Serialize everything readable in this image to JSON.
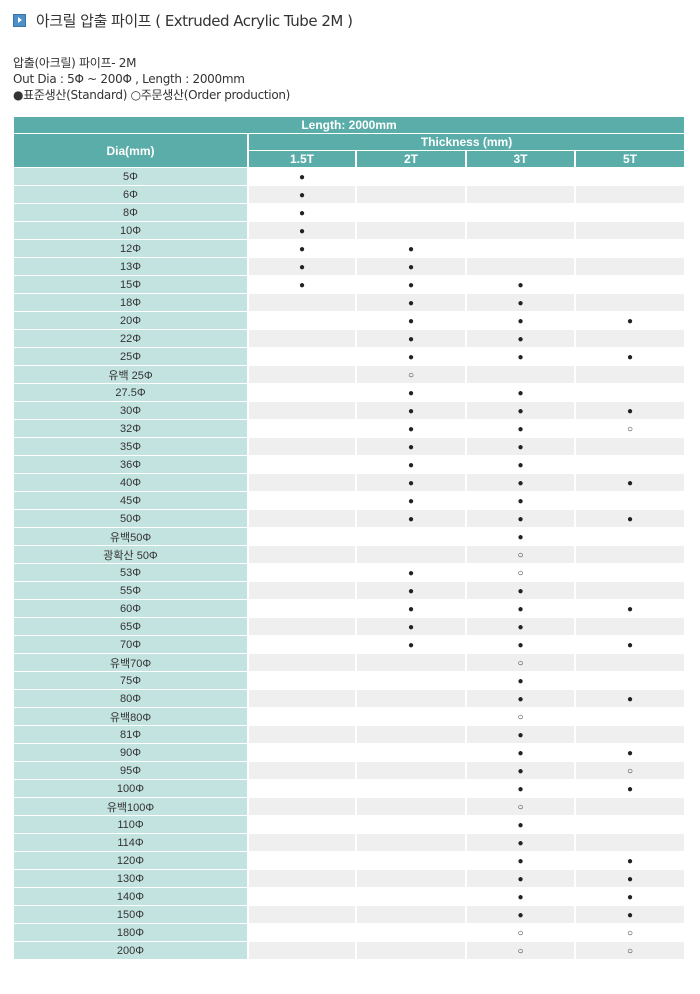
{
  "title": "아크릴 압출 파이프 ( Extruded Acrylic Tube 2M )",
  "desc": {
    "line1": "압출(아크릴) 파이프- 2M",
    "line2": "Out Dia : 5Φ ~ 200Φ , Length : 2000mm",
    "line3": "●표준생산(Standard) ○주문생산(Order production)"
  },
  "colors": {
    "header": "#5aada9",
    "dia_cell": "#c3e3e1",
    "row_alt": "#efefef"
  },
  "table": {
    "length_header": "Length: 2000mm",
    "dia_header": "Dia(mm)",
    "thickness_header": "Thickness (mm)",
    "columns": [
      "1.5T",
      "2T",
      "3T",
      "5T"
    ],
    "rows": [
      {
        "dia": "5Φ",
        "v": [
          "●",
          "",
          "",
          ""
        ]
      },
      {
        "dia": "6Φ",
        "v": [
          "●",
          "",
          "",
          ""
        ]
      },
      {
        "dia": "8Φ",
        "v": [
          "●",
          "",
          "",
          ""
        ]
      },
      {
        "dia": "10Φ",
        "v": [
          "●",
          "",
          "",
          ""
        ]
      },
      {
        "dia": "12Φ",
        "v": [
          "●",
          "●",
          "",
          ""
        ]
      },
      {
        "dia": "13Φ",
        "v": [
          "●",
          "●",
          "",
          ""
        ]
      },
      {
        "dia": "15Φ",
        "v": [
          "●",
          "●",
          "●",
          ""
        ]
      },
      {
        "dia": "18Φ",
        "v": [
          "",
          "●",
          "●",
          ""
        ]
      },
      {
        "dia": "20Φ",
        "v": [
          "",
          "●",
          "●",
          "●"
        ]
      },
      {
        "dia": "22Φ",
        "v": [
          "",
          "●",
          "●",
          ""
        ]
      },
      {
        "dia": "25Φ",
        "v": [
          "",
          "●",
          "●",
          "●"
        ]
      },
      {
        "dia": "유백 25Φ",
        "v": [
          "",
          "○",
          "",
          ""
        ]
      },
      {
        "dia": "27.5Φ",
        "v": [
          "",
          "●",
          "●",
          ""
        ]
      },
      {
        "dia": "30Φ",
        "v": [
          "",
          "●",
          "●",
          "●"
        ]
      },
      {
        "dia": "32Φ",
        "v": [
          "",
          "●",
          "●",
          "○"
        ]
      },
      {
        "dia": "35Φ",
        "v": [
          "",
          "●",
          "●",
          ""
        ]
      },
      {
        "dia": "36Φ",
        "v": [
          "",
          "●",
          "●",
          ""
        ]
      },
      {
        "dia": "40Φ",
        "v": [
          "",
          "●",
          "●",
          "●"
        ]
      },
      {
        "dia": "45Φ",
        "v": [
          "",
          "●",
          "●",
          ""
        ]
      },
      {
        "dia": "50Φ",
        "v": [
          "",
          "●",
          "●",
          "●"
        ]
      },
      {
        "dia": "유백50Φ",
        "v": [
          "",
          "",
          "●",
          ""
        ]
      },
      {
        "dia": "광확산 50Φ",
        "v": [
          "",
          "",
          "○",
          ""
        ]
      },
      {
        "dia": "53Φ",
        "v": [
          "",
          "●",
          "○",
          ""
        ]
      },
      {
        "dia": "55Φ",
        "v": [
          "",
          "●",
          "●",
          ""
        ]
      },
      {
        "dia": "60Φ",
        "v": [
          "",
          "●",
          "●",
          "●"
        ]
      },
      {
        "dia": "65Φ",
        "v": [
          "",
          "●",
          "●",
          ""
        ]
      },
      {
        "dia": "70Φ",
        "v": [
          "",
          "●",
          "●",
          "●"
        ]
      },
      {
        "dia": "유백70Φ",
        "v": [
          "",
          "",
          "○",
          ""
        ]
      },
      {
        "dia": "75Φ",
        "v": [
          "",
          "",
          "●",
          ""
        ]
      },
      {
        "dia": "80Φ",
        "v": [
          "",
          "",
          "●",
          "●"
        ]
      },
      {
        "dia": "유백80Φ",
        "v": [
          "",
          "",
          "○",
          ""
        ]
      },
      {
        "dia": "81Φ",
        "v": [
          "",
          "",
          "●",
          ""
        ]
      },
      {
        "dia": "90Φ",
        "v": [
          "",
          "",
          "●",
          "●"
        ]
      },
      {
        "dia": "95Φ",
        "v": [
          "",
          "",
          "●",
          "○"
        ]
      },
      {
        "dia": "100Φ",
        "v": [
          "",
          "",
          "●",
          "●"
        ]
      },
      {
        "dia": "유백100Φ",
        "v": [
          "",
          "",
          "○",
          ""
        ]
      },
      {
        "dia": "110Φ",
        "v": [
          "",
          "",
          "●",
          ""
        ]
      },
      {
        "dia": "114Φ",
        "v": [
          "",
          "",
          "●",
          ""
        ]
      },
      {
        "dia": "120Φ",
        "v": [
          "",
          "",
          "●",
          "●"
        ]
      },
      {
        "dia": "130Φ",
        "v": [
          "",
          "",
          "●",
          "●"
        ]
      },
      {
        "dia": "140Φ",
        "v": [
          "",
          "",
          "●",
          "●"
        ]
      },
      {
        "dia": "150Φ",
        "v": [
          "",
          "",
          "●",
          "●"
        ]
      },
      {
        "dia": "180Φ",
        "v": [
          "",
          "",
          "○",
          "○"
        ]
      },
      {
        "dia": "200Φ",
        "v": [
          "",
          "",
          "○",
          "○"
        ]
      }
    ]
  }
}
